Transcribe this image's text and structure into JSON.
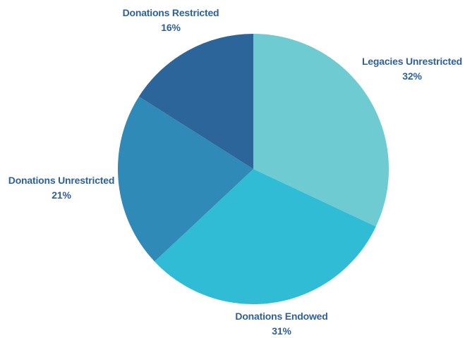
{
  "chart_data": {
    "type": "pie",
    "title": "",
    "categories": [
      "Legacies Unrestricted",
      "Donations Endowed",
      "Donations Unrestricted",
      "Donations Restricted"
    ],
    "values": [
      32,
      31,
      21,
      16
    ],
    "value_labels": [
      "32%",
      "31%",
      "21%",
      "16%"
    ],
    "colors": [
      "#6ecbd2",
      "#31bcd5",
      "#2f8ab8",
      "#2c6599"
    ],
    "start_angle_deg": 0,
    "direction": "clockwise",
    "legend": "none"
  }
}
